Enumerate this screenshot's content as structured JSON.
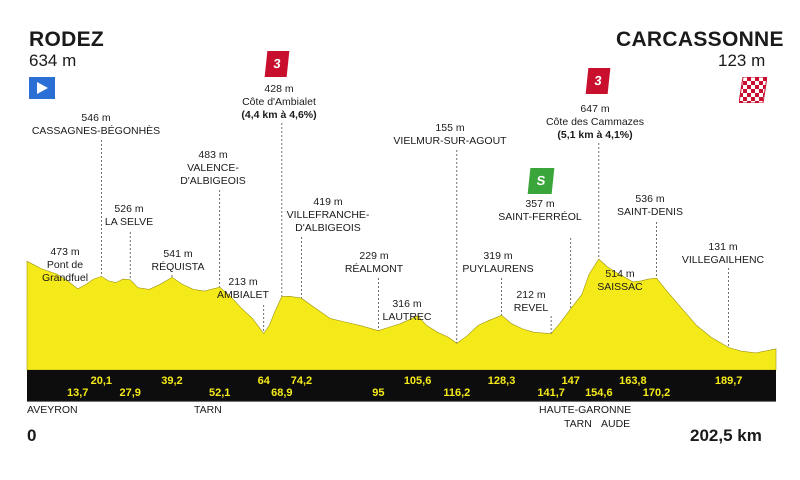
{
  "stage": {
    "start_city": "RODEZ",
    "start_elevation": "634 m",
    "finish_city": "CARCASSONNE",
    "finish_elevation": "123 m",
    "distance_start": "0",
    "distance_total": "202,5 km"
  },
  "colors": {
    "profile_fill": "#f5ea19",
    "km_bar": "#0d0d0d",
    "km_text": "#f5ea19",
    "climb_badge": "#c8102e",
    "sprint_badge": "#3aa53a",
    "start_flag": "#2a6fd6"
  },
  "badges": {
    "climb1": "3",
    "climb2": "3",
    "sprint": "S"
  },
  "points": [
    {
      "id": "pont-de-grandfuel",
      "elev": "473 m",
      "name": "Pont de",
      "name2": "Grandfuel",
      "km": 13.7
    },
    {
      "id": "cassagnes-begonhes",
      "elev": "546 m",
      "name": "CASSAGNES-BÉGONHÈS",
      "km": 20.1
    },
    {
      "id": "la-selve",
      "elev": "526 m",
      "name": "LA SELVE",
      "km": 27.9
    },
    {
      "id": "requista",
      "elev": "541 m",
      "name": "RÉQUISTA",
      "km": 39.2
    },
    {
      "id": "valence-dalbigeois",
      "elev": "483 m",
      "name": "VALENCE-",
      "name2": "D'ALBIGEOIS",
      "km": 52.1
    },
    {
      "id": "ambialet",
      "elev": "213 m",
      "name": "AMBIALET",
      "km": 64
    },
    {
      "id": "cote-dambialet",
      "elev": "428 m",
      "name": "Côte d'Ambialet",
      "name2": "(4,4 km à 4,6%)",
      "km": 68.9
    },
    {
      "id": "villefranche-dalbigeois",
      "elev": "419 m",
      "name": "VILLEFRANCHE-",
      "name2": "D'ALBIGEOIS",
      "km": 74.2
    },
    {
      "id": "realmont",
      "elev": "229 m",
      "name": "RÉALMONT",
      "km": 95
    },
    {
      "id": "lautrec",
      "elev": "316 m",
      "name": "LAUTREC",
      "km": 105.6
    },
    {
      "id": "vielmur-sur-agout",
      "elev": "155 m",
      "name": "VIELMUR-SUR-AGOUT",
      "km": 116.2
    },
    {
      "id": "puylaurens",
      "elev": "319 m",
      "name": "PUYLAURENS",
      "km": 128.3
    },
    {
      "id": "revel",
      "elev": "212 m",
      "name": "REVEL",
      "km": 141.7
    },
    {
      "id": "saint-ferreol",
      "elev": "357 m",
      "name": "SAINT-FERRÉOL",
      "km": 147
    },
    {
      "id": "cote-des-cammazes",
      "elev": "647 m",
      "name": "Côte des Cammazes",
      "name2": "(5,1 km à 4,1%)",
      "km": 154.6
    },
    {
      "id": "saissac",
      "elev": "514 m",
      "name": "SAISSAC",
      "km": 163.8
    },
    {
      "id": "saint-denis",
      "elev": "536 m",
      "name": "SAINT-DENIS",
      "km": 170.2
    },
    {
      "id": "villegailhenc",
      "elev": "131 m",
      "name": "VILLEGAILHENC",
      "km": 189.7
    }
  ],
  "regions": {
    "aveyron": "AVEYRON",
    "tarn": "TARN",
    "haute_garonne": "HAUTE-GARONNE",
    "tarn2": "TARN",
    "aude": "AUDE"
  },
  "chart_data": {
    "type": "area",
    "title": "",
    "xlabel": "",
    "ylabel": "",
    "xlim": [
      0,
      202.5
    ],
    "ylim": [
      0,
      700
    ],
    "km_markers": [
      13.7,
      20.1,
      27.9,
      39.2,
      52.1,
      64,
      68.9,
      74.2,
      95,
      105.6,
      116.2,
      128.3,
      141.7,
      147,
      154.6,
      163.8,
      170.2,
      189.7
    ],
    "km_labels": [
      "13,7",
      "20,1",
      "27,9",
      "39,2",
      "52,1",
      "64",
      "68,9",
      "74,2",
      "95",
      "105,6",
      "116,2",
      "128,3",
      "141,7",
      "147",
      "154,6",
      "163,8",
      "170,2",
      "189,7"
    ],
    "series": [
      {
        "x": [
          0,
          4,
          8,
          11,
          13.7,
          16,
          18,
          20.1,
          22,
          24,
          26,
          27.9,
          30,
          33,
          36,
          39.2,
          42,
          45,
          48,
          52.1,
          55,
          58,
          61,
          64,
          65.5,
          67,
          68.9,
          71,
          74.2,
          78,
          82,
          86,
          90,
          95,
          98,
          101,
          103,
          105.6,
          108,
          111,
          114,
          116.2,
          119,
          122,
          125,
          128.3,
          131,
          134,
          137,
          141.7,
          144,
          147,
          150,
          152,
          154.6,
          157,
          160,
          163.8,
          166,
          168,
          170.2,
          173,
          177,
          181,
          185,
          189.7,
          193,
          197,
          202.5
        ],
        "y": [
          634,
          590,
          560,
          520,
          473,
          500,
          530,
          546,
          520,
          510,
          530,
          526,
          480,
          470,
          500,
          541,
          500,
          470,
          460,
          483,
          430,
          360,
          300,
          213,
          260,
          340,
          428,
          430,
          419,
          360,
          300,
          280,
          260,
          229,
          250,
          270,
          290,
          316,
          260,
          220,
          190,
          155,
          200,
          260,
          290,
          319,
          270,
          240,
          220,
          212,
          270,
          357,
          440,
          560,
          647,
          600,
          560,
          514,
          520,
          530,
          536,
          460,
          360,
          260,
          190,
          131,
          110,
          100,
          123
        ]
      }
    ]
  }
}
